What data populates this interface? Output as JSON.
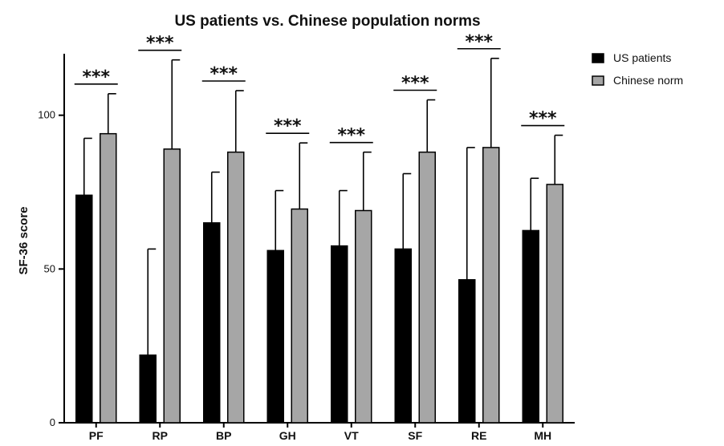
{
  "chart_data": {
    "type": "bar",
    "title": "US patients vs. Chinese population norms",
    "xlabel": "",
    "ylabel": "SF-36 score",
    "ylim": [
      0,
      120
    ],
    "yticks": [
      0,
      50,
      100
    ],
    "categories": [
      "PF",
      "RP",
      "BP",
      "GH",
      "VT",
      "SF",
      "RE",
      "MH"
    ],
    "series": [
      {
        "name": "US patients",
        "color": "#000000",
        "values": [
          74,
          22,
          65,
          56,
          57.5,
          56.5,
          46.5,
          62.5
        ],
        "error": [
          18.5,
          34.5,
          16.5,
          19.5,
          18,
          24.5,
          43,
          17
        ]
      },
      {
        "name": "Chinese norm",
        "color": "#a6a6a6",
        "values": [
          94,
          89,
          88,
          69.5,
          69,
          88,
          89.5,
          77.5
        ],
        "error": [
          13,
          29,
          20,
          21.5,
          19,
          17,
          29,
          16
        ]
      }
    ],
    "significance": [
      "***",
      "***",
      "***",
      "***",
      "***",
      "***",
      "***",
      "***"
    ],
    "legend_position": "top-right",
    "grid": false
  }
}
